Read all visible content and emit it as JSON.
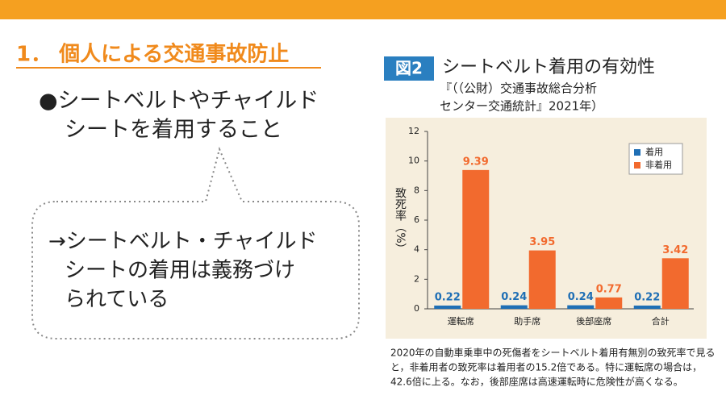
{
  "header": {
    "title": "1． 個人による交通事故防止"
  },
  "bullet": {
    "lines": [
      "●シートベルトやチャイルド",
      "シートを着用すること"
    ]
  },
  "bubble": {
    "lines": [
      "→シートベルト・チャイルド",
      "シートの着用は義務づけ",
      "られている"
    ]
  },
  "figure": {
    "badge": "図2",
    "caption_lines": [
      "2020年の自動車乗車中の死傷者をシートベルト着用有無別の致死率で見る",
      "と，非着用者の致死率は着用者の15.2倍である。特に運転席の場合は，",
      "42.6倍に上る。なお，後部座席は高速運転時に危険性が高くなる。"
    ]
  },
  "chart_data": {
    "type": "bar",
    "title": "シートベルト着用の有効性",
    "subtitle_lines": [
      "『（（公財）交通事故総合分析",
      "センター交通統計』2021年）"
    ],
    "y_label": "致死率（%）",
    "categories": [
      "運転席",
      "助手席",
      "後部座席",
      "合計"
    ],
    "series": [
      {
        "name": "着用",
        "color": "#1f6fb5",
        "values": [
          0.22,
          0.24,
          0.24,
          0.22
        ]
      },
      {
        "name": "非着用",
        "color": "#f26a2e",
        "values": [
          9.39,
          3.95,
          0.77,
          3.42
        ]
      }
    ],
    "ylim": [
      0,
      12
    ],
    "yticks": [
      0,
      2,
      4,
      6,
      8,
      10,
      12
    ],
    "grid": false,
    "legend": "upper right"
  }
}
